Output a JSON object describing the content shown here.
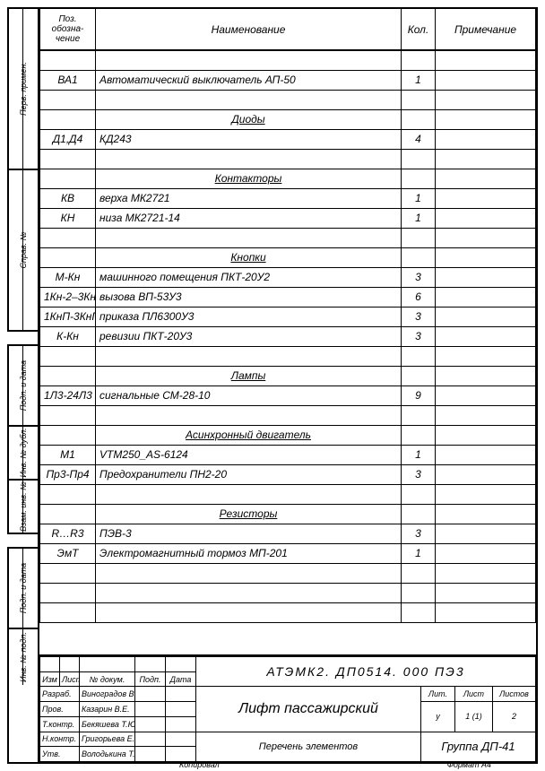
{
  "sidebar_labels": [
    "Перв. примен.",
    "Справ. №",
    "Подп. и дата",
    "Инв. № дубл.",
    "Взам. инв. №",
    "Подп. и дата",
    "Инв. № подп."
  ],
  "headers": {
    "pos": "Поз. обозна- чение",
    "name": "Наименование",
    "qty": "Кол.",
    "note": "Примечание"
  },
  "rows": [
    {
      "type": "blank"
    },
    {
      "pos": "ВА1",
      "name": "Автоматический выключатель АП-50",
      "qty": "1"
    },
    {
      "type": "blank"
    },
    {
      "type": "section",
      "name": "Диоды"
    },
    {
      "pos": "Д1,Д4",
      "name": "КД243",
      "qty": "4"
    },
    {
      "type": "blank"
    },
    {
      "type": "section",
      "name": "Контакторы"
    },
    {
      "pos": "КВ",
      "name": "верха МК2721",
      "qty": "1"
    },
    {
      "pos": "КН",
      "name": "низа МК2721-14",
      "qty": "1"
    },
    {
      "type": "blank"
    },
    {
      "type": "section",
      "name": "Кнопки"
    },
    {
      "pos": "М-Кн",
      "name": "машинного помещения ПКТ-20У2",
      "qty": "3"
    },
    {
      "pos": "1Кн-2–3Кн-2",
      "name": "вызова ВП-53У3",
      "qty": "6",
      "small": true
    },
    {
      "pos": "1КнП-3КнП",
      "name": "приказа ПЛ6300У3",
      "qty": "3",
      "small": true
    },
    {
      "pos": "К-Кн",
      "name": "ревизии ПКТ-20У3",
      "qty": "3"
    },
    {
      "type": "blank"
    },
    {
      "type": "section",
      "name": "Лампы"
    },
    {
      "pos": "1Л3-24Л3",
      "name": "сигнальные СМ-28-10",
      "qty": "9",
      "small": true
    },
    {
      "type": "blank"
    },
    {
      "type": "section",
      "name": "Асинхронный двигатель"
    },
    {
      "pos": "М1",
      "name": "VTM250_AS-6124",
      "qty": "1"
    },
    {
      "pos": "Пр3-Пр4",
      "name": "Предохранители ПН2-20",
      "qty": "3",
      "small": true
    },
    {
      "type": "blank"
    },
    {
      "type": "section",
      "name": "Резисторы"
    },
    {
      "pos": "R…R3",
      "name": "ПЭВ-3",
      "qty": "3"
    },
    {
      "pos": "ЭмТ",
      "name": "Электромагнитный тормоз МП-201",
      "qty": "1"
    },
    {
      "type": "blank"
    },
    {
      "type": "blank"
    },
    {
      "type": "blank"
    }
  ],
  "title_block": {
    "hdr": {
      "izm": "Изм",
      "list": "Лист",
      "ndoc": "№ докум.",
      "podp": "Подп.",
      "data": "Дата"
    },
    "roles": [
      {
        "role": "Разраб.",
        "name": "Виноградов В.С."
      },
      {
        "role": "Пров.",
        "name": "Казарин В.Е."
      },
      {
        "role": "Т.контр.",
        "name": "Бекяшева Т.Ю."
      },
      {
        "role": "Н.контр.",
        "name": "Григорьева Е.В."
      },
      {
        "role": "Утв.",
        "name": "Володькина Т.А."
      }
    ],
    "doc_code": "АТЭМК2. ДП0514. 000 ПЭ3",
    "title": "Лифт пассажирский",
    "subtitle": "Перечень элементов",
    "lit": "Лит.",
    "lit_val": "у",
    "list": "Лист",
    "list_val": "1 (1)",
    "sheets": "Листов",
    "sheets_val": "2",
    "group": "Группа ДП-41",
    "footer_l": "Копировал",
    "footer_r": "Формат    А4"
  }
}
